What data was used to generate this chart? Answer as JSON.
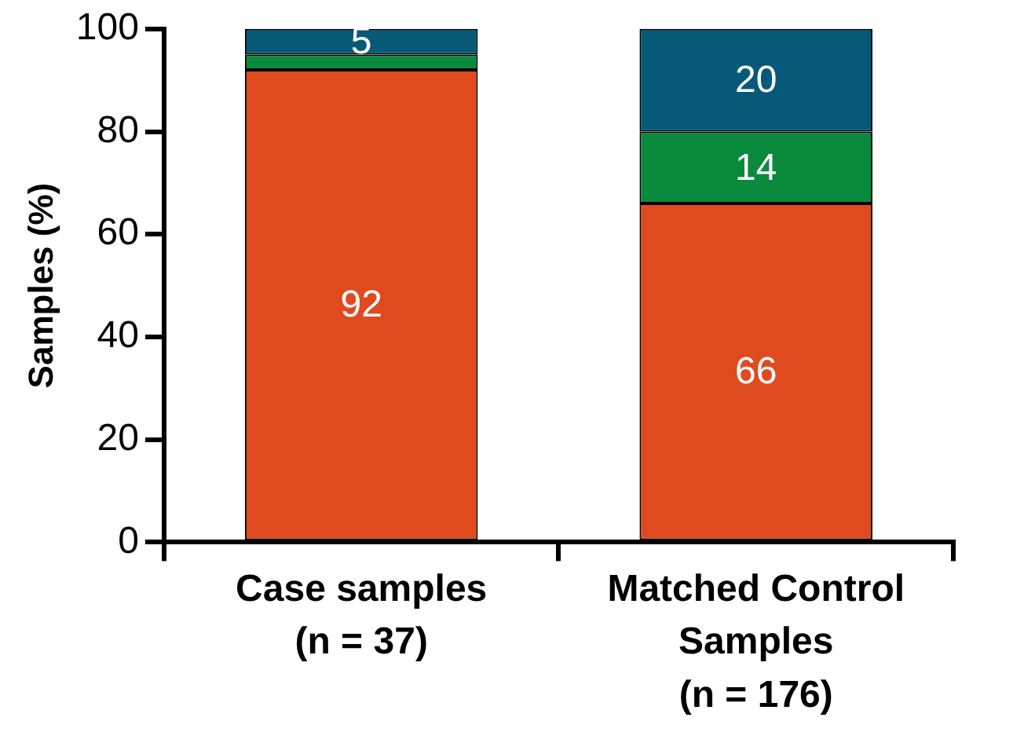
{
  "chart_data": {
    "type": "bar",
    "stacked": true,
    "ylabel": "Samples (%)",
    "categories": [
      "Case samples\n(n = 37)",
      "Matched Control\nSamples\n(n = 176)"
    ],
    "series": [
      {
        "color": "#e04a1f",
        "values": [
          92,
          66
        ],
        "value_labels": [
          "92",
          "66"
        ]
      },
      {
        "color": "#0a8a3c",
        "values": [
          3,
          14
        ],
        "value_labels": [
          null,
          "14"
        ]
      },
      {
        "color": "#065a78",
        "values": [
          5,
          20
        ],
        "value_labels": [
          "5",
          "20"
        ]
      }
    ],
    "ylim": [
      0,
      100
    ],
    "yticks": [
      0,
      20,
      40,
      60,
      80,
      100
    ],
    "grid": false,
    "legend": false
  }
}
